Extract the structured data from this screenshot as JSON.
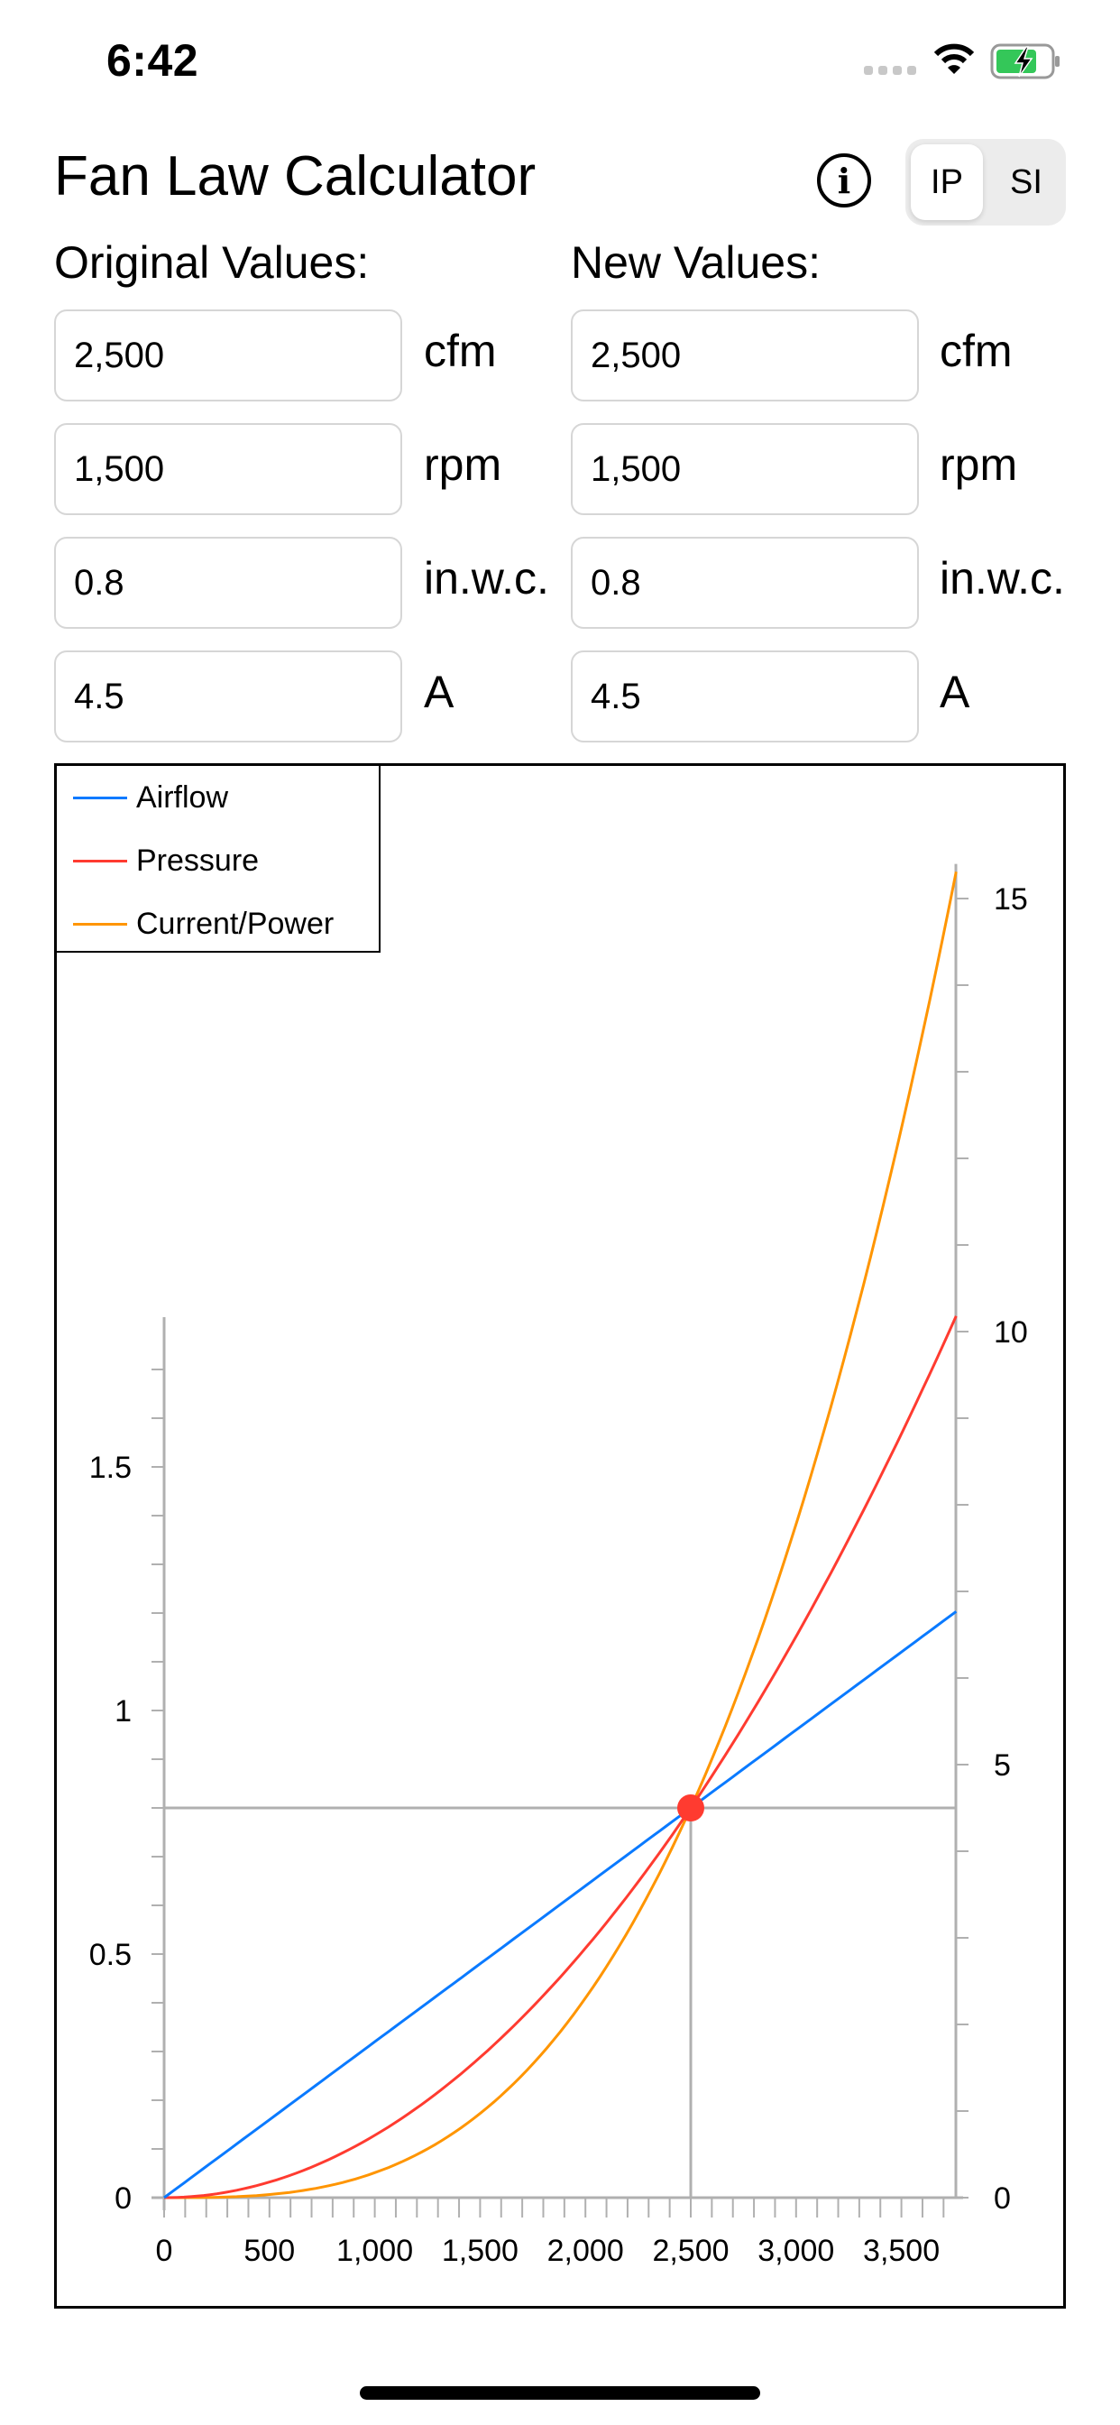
{
  "status_bar": {
    "time": "6:42",
    "signal_icon": "signal-dots-icon",
    "wifi_icon": "wifi-icon",
    "battery_icon": "battery-charging-icon"
  },
  "header": {
    "title": "Fan Law Calculator",
    "info_icon": "info-circle-icon",
    "unit_toggle": {
      "options": [
        "IP",
        "SI"
      ],
      "selected": "IP"
    }
  },
  "original": {
    "label": "Original Values:",
    "fields": [
      {
        "value": "2,500",
        "unit": "cfm"
      },
      {
        "value": "1,500",
        "unit": "rpm"
      },
      {
        "value": "0.8",
        "unit": "in.w.c."
      },
      {
        "value": "4.5",
        "unit": "A"
      }
    ]
  },
  "new": {
    "label": "New Values:",
    "fields": [
      {
        "value": "2,500",
        "unit": "cfm"
      },
      {
        "value": "1,500",
        "unit": "rpm"
      },
      {
        "value": "0.8",
        "unit": "in.w.c."
      },
      {
        "value": "4.5",
        "unit": "A"
      }
    ]
  },
  "colors": {
    "airflow": "#0a7aff",
    "pressure": "#ff3b30",
    "current": "#ff9500",
    "axis": "#b0b0b0",
    "marker": "#ff3b30"
  },
  "chart_data": {
    "type": "line",
    "title": "",
    "xlabel": "",
    "ylabel": "",
    "y2label": "",
    "legend": [
      "Airflow",
      "Pressure",
      "Current/Power"
    ],
    "legend_position": "top-left",
    "x_ticks": [
      "0",
      "500",
      "1,000",
      "1,500",
      "2,000",
      "2,500",
      "3,000",
      "3,500"
    ],
    "y_left_ticks": [
      "0",
      "0.5",
      "1",
      "1.5"
    ],
    "y_right_ticks": [
      "0",
      "5",
      "10",
      "15"
    ],
    "xlim": [
      0,
      3760
    ],
    "ylim_left": [
      0,
      1.8
    ],
    "ylim_right": [
      0,
      15.5
    ],
    "grid": false,
    "operating_point": {
      "x": 2500,
      "y_left": 0.8,
      "y_right": 4.5
    },
    "series": [
      {
        "name": "Airflow",
        "axis": "left",
        "x": [
          0,
          500,
          1000,
          1500,
          2000,
          2500,
          3000,
          3500,
          3760
        ],
        "values": [
          0,
          0.16,
          0.32,
          0.48,
          0.64,
          0.8,
          0.96,
          1.12,
          1.2
        ]
      },
      {
        "name": "Pressure",
        "axis": "left",
        "x": [
          0,
          500,
          1000,
          1500,
          2000,
          2500,
          3000,
          3500,
          3760
        ],
        "values": [
          0,
          0.03,
          0.13,
          0.29,
          0.51,
          0.8,
          1.15,
          1.57,
          1.81
        ]
      },
      {
        "name": "Current/Power",
        "axis": "right",
        "x": [
          0,
          500,
          1000,
          1500,
          2000,
          2500,
          3000,
          3500,
          3760
        ],
        "values": [
          0,
          0.04,
          0.29,
          0.97,
          2.3,
          4.5,
          7.78,
          12.35,
          15.3
        ]
      }
    ]
  }
}
